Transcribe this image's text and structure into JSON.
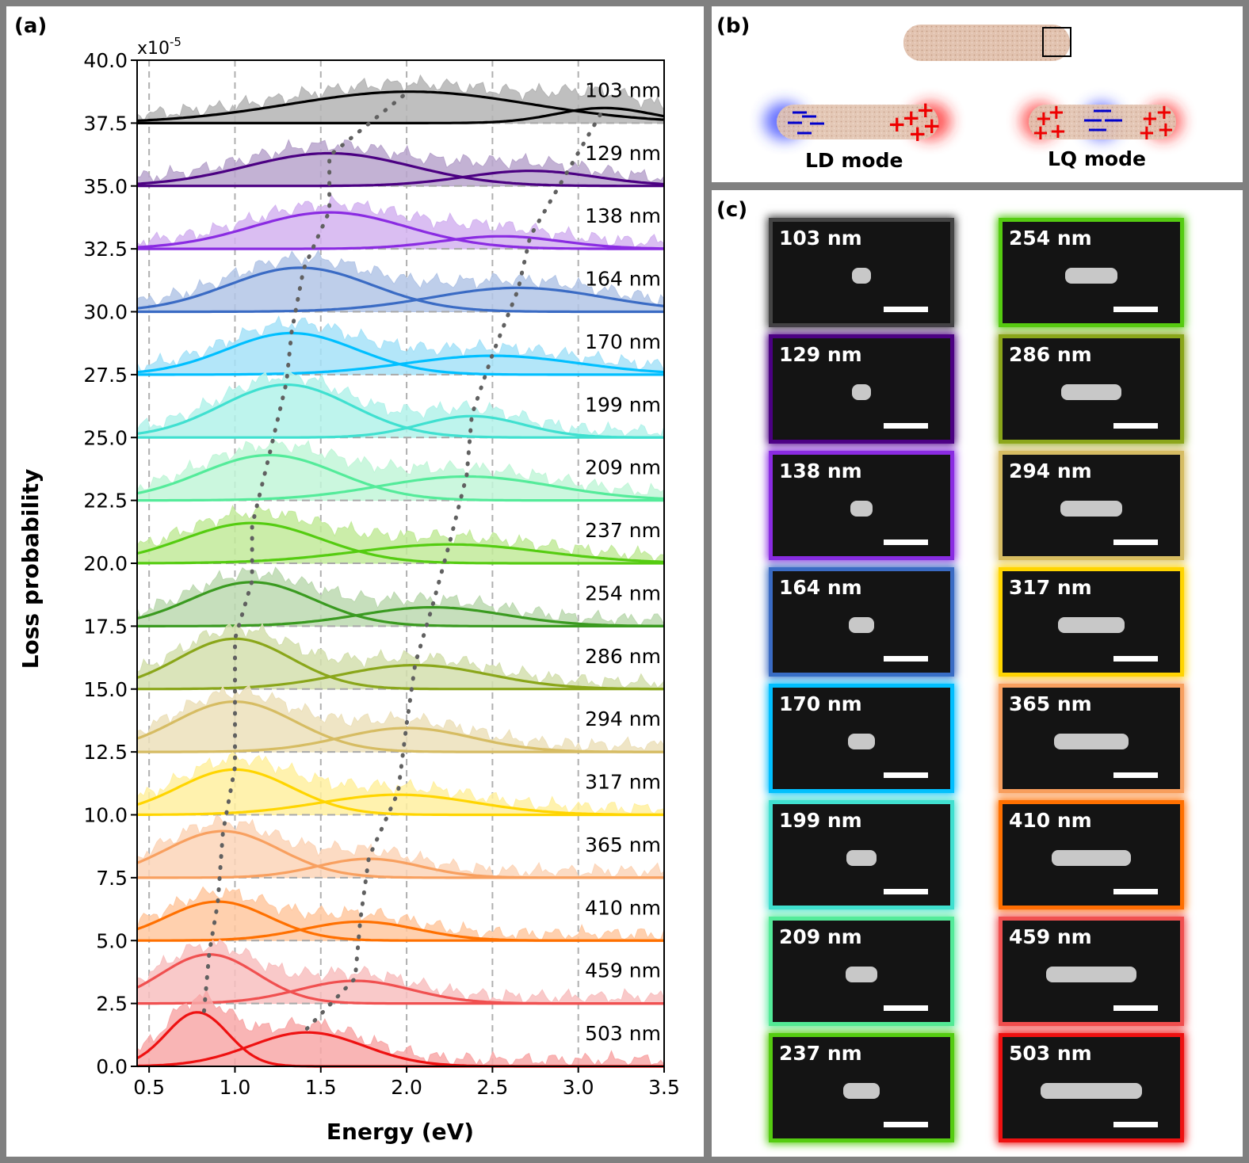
{
  "panels": {
    "a": "(a)",
    "b": "(b)",
    "c": "(c)"
  },
  "chart_data": {
    "type": "area",
    "xlabel": "Energy (eV)",
    "ylabel": "Loss probability",
    "multiplier": "x10",
    "multiplier_exp": "-5",
    "xlim": [
      0.43,
      3.5
    ],
    "ylim": [
      0,
      40
    ],
    "xticks": [
      "0.5",
      "1.0",
      "1.5",
      "2.0",
      "2.5",
      "3.0",
      "3.5"
    ],
    "yticks": [
      "0.0",
      "2.5",
      "5.0",
      "7.5",
      "10.0",
      "12.5",
      "15.0",
      "17.5",
      "20.0",
      "22.5",
      "25.0",
      "27.5",
      "30.0",
      "32.5",
      "35.0",
      "37.5",
      "40.0"
    ],
    "grid": "vertical dashed",
    "series": [
      {
        "name": "103 nm",
        "baseline": 37.5,
        "color": "#000000",
        "fill": "#b4b4b4",
        "peaks": [
          {
            "center": 2.02,
            "height": 1.25,
            "width": 0.7
          },
          {
            "center": 3.15,
            "height": 0.6,
            "width": 0.28
          }
        ]
      },
      {
        "name": "129 nm",
        "baseline": 35.0,
        "color": "#4b0082",
        "fill": "#b8a4cc",
        "peaks": [
          {
            "center": 1.55,
            "height": 1.3,
            "width": 0.48
          },
          {
            "center": 2.72,
            "height": 0.6,
            "width": 0.38
          }
        ]
      },
      {
        "name": "138 nm",
        "baseline": 32.5,
        "color": "#8a2be2",
        "fill": "#d3b3f0",
        "peaks": [
          {
            "center": 1.55,
            "height": 1.45,
            "width": 0.45
          },
          {
            "center": 2.55,
            "height": 0.5,
            "width": 0.35
          }
        ]
      },
      {
        "name": "164 nm",
        "baseline": 30.0,
        "color": "#3a6bc4",
        "fill": "#b3c5e6",
        "peaks": [
          {
            "center": 1.38,
            "height": 1.75,
            "width": 0.42
          },
          {
            "center": 2.65,
            "height": 0.95,
            "width": 0.5
          }
        ]
      },
      {
        "name": "170 nm",
        "baseline": 27.5,
        "color": "#00bfff",
        "fill": "#a6e2f8",
        "peaks": [
          {
            "center": 1.33,
            "height": 1.65,
            "width": 0.38
          },
          {
            "center": 2.5,
            "height": 0.75,
            "width": 0.5
          }
        ]
      },
      {
        "name": "199 nm",
        "baseline": 25.0,
        "color": "#40e0d0",
        "fill": "#b3f2ea",
        "peaks": [
          {
            "center": 1.3,
            "height": 2.1,
            "width": 0.38
          },
          {
            "center": 2.38,
            "height": 0.85,
            "width": 0.3
          }
        ]
      },
      {
        "name": "209 nm",
        "baseline": 22.5,
        "color": "#54eb9a",
        "fill": "#c2f6d8",
        "peaks": [
          {
            "center": 1.2,
            "height": 1.8,
            "width": 0.4
          },
          {
            "center": 2.35,
            "height": 0.95,
            "width": 0.5
          }
        ]
      },
      {
        "name": "237 nm",
        "baseline": 20.0,
        "color": "#55cc11",
        "fill": "#c2ea9a",
        "peaks": [
          {
            "center": 1.1,
            "height": 1.6,
            "width": 0.4
          },
          {
            "center": 2.25,
            "height": 0.75,
            "width": 0.55
          }
        ]
      },
      {
        "name": "254 nm",
        "baseline": 17.5,
        "color": "#3a9a20",
        "fill": "#bcd9b0",
        "peaks": [
          {
            "center": 1.1,
            "height": 1.75,
            "width": 0.36
          },
          {
            "center": 2.15,
            "height": 0.75,
            "width": 0.42
          }
        ]
      },
      {
        "name": "286 nm",
        "baseline": 15.0,
        "color": "#8aa61a",
        "fill": "#d3dfae",
        "peaks": [
          {
            "center": 1.0,
            "height": 2.0,
            "width": 0.33
          },
          {
            "center": 2.05,
            "height": 0.95,
            "width": 0.43
          }
        ]
      },
      {
        "name": "294 nm",
        "baseline": 12.5,
        "color": "#d6bc63",
        "fill": "#ece0bb",
        "peaks": [
          {
            "center": 1.0,
            "height": 2.0,
            "width": 0.35
          },
          {
            "center": 2.0,
            "height": 0.95,
            "width": 0.38
          }
        ]
      },
      {
        "name": "317 nm",
        "baseline": 10.0,
        "color": "#ffd500",
        "fill": "#fff0a0",
        "peaks": [
          {
            "center": 1.0,
            "height": 1.8,
            "width": 0.33
          },
          {
            "center": 1.95,
            "height": 0.8,
            "width": 0.45
          }
        ]
      },
      {
        "name": "365 nm",
        "baseline": 7.5,
        "color": "#f8a060",
        "fill": "#fcd5b8",
        "peaks": [
          {
            "center": 0.93,
            "height": 1.85,
            "width": 0.33
          },
          {
            "center": 1.78,
            "height": 0.75,
            "width": 0.3
          }
        ]
      },
      {
        "name": "410 nm",
        "baseline": 5.0,
        "color": "#ff7000",
        "fill": "#ffc8a0",
        "peaks": [
          {
            "center": 0.9,
            "height": 1.55,
            "width": 0.3
          },
          {
            "center": 1.73,
            "height": 0.75,
            "width": 0.33
          }
        ]
      },
      {
        "name": "459 nm",
        "baseline": 2.5,
        "color": "#f05050",
        "fill": "#f8c0c0",
        "peaks": [
          {
            "center": 0.85,
            "height": 1.95,
            "width": 0.28
          },
          {
            "center": 1.7,
            "height": 0.9,
            "width": 0.33
          }
        ]
      },
      {
        "name": "503 nm",
        "baseline": 0.0,
        "color": "#ee1111",
        "fill": "#f8a8a8",
        "peaks": [
          {
            "center": 0.78,
            "height": 2.15,
            "width": 0.18
          },
          {
            "center": 1.42,
            "height": 1.35,
            "width": 0.33
          }
        ]
      }
    ],
    "trend_ld": [
      [
        0.82,
        2.2
      ],
      [
        0.85,
        4.5
      ],
      [
        0.9,
        6.5
      ],
      [
        0.93,
        9.3
      ],
      [
        1.0,
        11.9
      ],
      [
        1.0,
        14.5
      ],
      [
        1.0,
        17.0
      ],
      [
        1.1,
        19.3
      ],
      [
        1.1,
        21.5
      ],
      [
        1.2,
        24.3
      ],
      [
        1.3,
        27.2
      ],
      [
        1.33,
        29.2
      ],
      [
        1.4,
        31.7
      ],
      [
        1.55,
        34.0
      ],
      [
        1.55,
        36.2
      ],
      [
        2.0,
        38.7
      ]
    ],
    "trend_lq": [
      [
        1.42,
        1.5
      ],
      [
        1.7,
        3.5
      ],
      [
        1.73,
        5.8
      ],
      [
        1.78,
        8.3
      ],
      [
        1.95,
        10.9
      ],
      [
        2.0,
        13.6
      ],
      [
        2.05,
        16.0
      ],
      [
        2.15,
        18.3
      ],
      [
        2.25,
        20.8
      ],
      [
        2.35,
        23.5
      ],
      [
        2.38,
        25.9
      ],
      [
        2.5,
        28.3
      ],
      [
        2.65,
        30.9
      ],
      [
        2.72,
        33.0
      ],
      [
        3.15,
        38.1
      ]
    ]
  },
  "schematic": {
    "ld_label": "LD mode",
    "lq_label": "LQ mode"
  },
  "sem_images": [
    {
      "label": "103 nm",
      "border": "#444444"
    },
    {
      "label": "129 nm",
      "border": "#4b0082"
    },
    {
      "label": "138 nm",
      "border": "#8a2be2"
    },
    {
      "label": "164 nm",
      "border": "#3a6bc4"
    },
    {
      "label": "170 nm",
      "border": "#00bfff"
    },
    {
      "label": "199 nm",
      "border": "#40e0d0"
    },
    {
      "label": "209 nm",
      "border": "#54eb9a"
    },
    {
      "label": "237 nm",
      "border": "#55cc11"
    },
    {
      "label": "254 nm",
      "border": "#55cc11"
    },
    {
      "label": "286 nm",
      "border": "#8aa61a"
    },
    {
      "label": "294 nm",
      "border": "#d6bc63"
    },
    {
      "label": "317 nm",
      "border": "#ffd500"
    },
    {
      "label": "365 nm",
      "border": "#f8a060"
    },
    {
      "label": "410 nm",
      "border": "#ff7000"
    },
    {
      "label": "459 nm",
      "border": "#f05050"
    },
    {
      "label": "503 nm",
      "border": "#ee1111"
    }
  ]
}
